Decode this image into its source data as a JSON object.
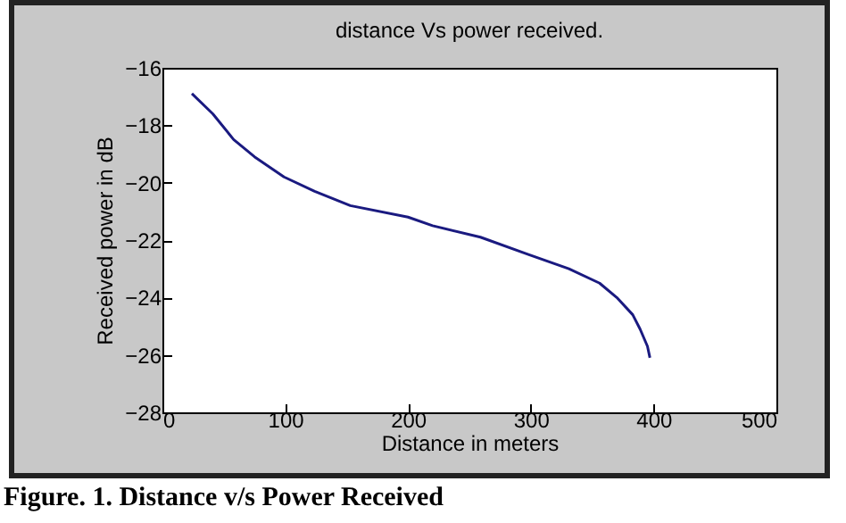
{
  "chart_data": {
    "type": "line",
    "title": "distance Vs power received.",
    "xlabel": "Distance in meters",
    "ylabel": "Received power in dB",
    "annotations": [
      "Figure. 1. Distance v/s Power Received"
    ],
    "x": [
      24,
      41,
      58,
      75,
      99,
      124,
      153,
      200,
      220,
      259,
      298,
      331,
      356,
      370,
      383,
      389,
      395,
      397
    ],
    "series": [
      {
        "color": "#1a1a80",
        "values": [
          -16.9,
          -17.6,
          -18.5,
          -19.1,
          -19.8,
          -20.3,
          -20.8,
          -21.2,
          -21.5,
          -21.9,
          -22.5,
          -23.0,
          -23.5,
          -24.0,
          -24.6,
          -25.1,
          -25.7,
          -26.1
        ]
      }
    ],
    "xlim": [
      0,
      500
    ],
    "xticks": [
      0,
      100,
      200,
      300,
      400,
      500
    ],
    "ylim": [
      -28,
      -16
    ],
    "yticks": [
      -28,
      -26,
      -24,
      -22,
      -20,
      -18,
      -16
    ],
    "grid": false,
    "legend": false,
    "marker": "none",
    "line_style": "solid"
  }
}
